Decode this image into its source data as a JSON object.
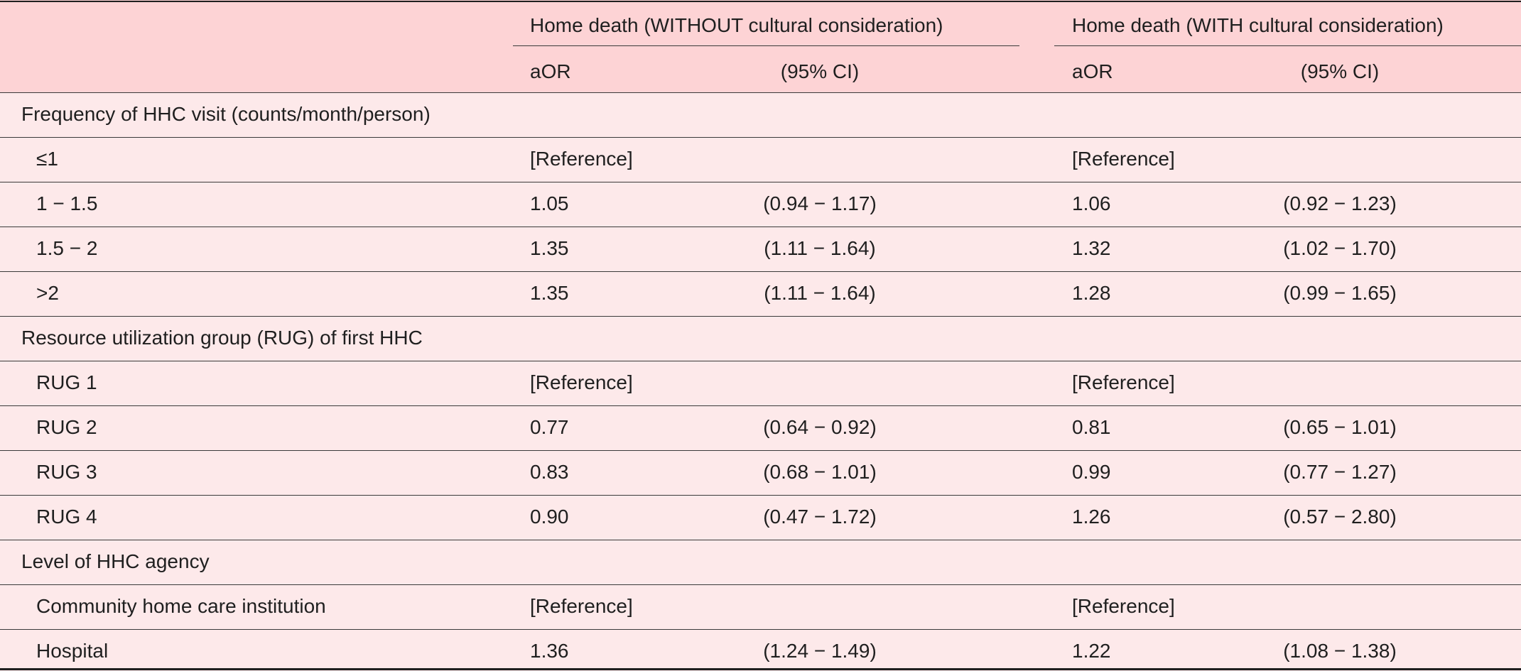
{
  "table": {
    "headers": {
      "group_without": "Home death (WITHOUT cultural consideration)",
      "group_with": "Home death (WITH cultural consideration)",
      "aor": "aOR",
      "ci": "(95% CI)"
    },
    "rows": [
      {
        "type": "section",
        "label": "Frequency of HHC visit (counts/month/person)"
      },
      {
        "type": "item",
        "label": "≤1",
        "aor_without": "[Reference]",
        "ci_without": "",
        "aor_with": "[Reference]",
        "ci_with": ""
      },
      {
        "type": "item",
        "label": "1 − 1.5",
        "aor_without": "1.05",
        "ci_without": "(0.94 − 1.17)",
        "aor_with": "1.06",
        "ci_with": "(0.92 − 1.23)"
      },
      {
        "type": "item",
        "label": "1.5 − 2",
        "aor_without": "1.35",
        "ci_without": "(1.11 − 1.64)",
        "aor_with": "1.32",
        "ci_with": "(1.02 − 1.70)"
      },
      {
        "type": "item",
        "label": ">2",
        "aor_without": "1.35",
        "ci_without": "(1.11 − 1.64)",
        "aor_with": "1.28",
        "ci_with": "(0.99 − 1.65)"
      },
      {
        "type": "section",
        "label": "Resource utilization group (RUG) of first HHC"
      },
      {
        "type": "item",
        "label": "RUG 1",
        "aor_without": "[Reference]",
        "ci_without": "",
        "aor_with": "[Reference]",
        "ci_with": ""
      },
      {
        "type": "item",
        "label": "RUG 2",
        "aor_without": "0.77",
        "ci_without": "(0.64 − 0.92)",
        "aor_with": "0.81",
        "ci_with": "(0.65 − 1.01)"
      },
      {
        "type": "item",
        "label": "RUG 3",
        "aor_without": "0.83",
        "ci_without": "(0.68 − 1.01)",
        "aor_with": "0.99",
        "ci_with": "(0.77 − 1.27)"
      },
      {
        "type": "item",
        "label": "RUG 4",
        "aor_without": "0.90",
        "ci_without": "(0.47 − 1.72)",
        "aor_with": "1.26",
        "ci_with": "(0.57 − 2.80)"
      },
      {
        "type": "section",
        "label": "Level of HHC agency"
      },
      {
        "type": "item",
        "label": "Community home care institution",
        "aor_without": "[Reference]",
        "ci_without": "",
        "aor_with": "[Reference]",
        "ci_with": ""
      },
      {
        "type": "item",
        "label": "Hospital",
        "aor_without": "1.36",
        "ci_without": "(1.24 − 1.49)",
        "aor_with": "1.22",
        "ci_with": "(1.08 − 1.38)"
      }
    ]
  }
}
